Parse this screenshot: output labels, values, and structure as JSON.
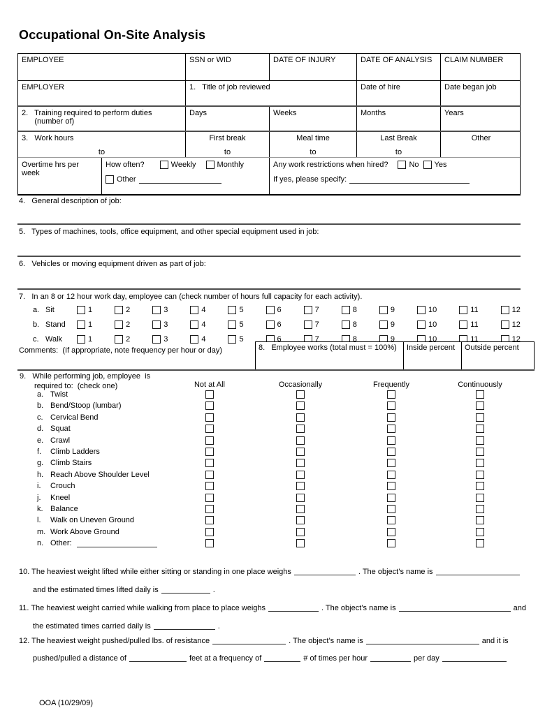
{
  "page": {
    "title": "Occupational On-Site Analysis",
    "footer": "OOA (10/29/09)"
  },
  "table": {
    "r1": [
      "EMPLOYEE",
      "SSN or WID",
      "DATE OF INJURY",
      "DATE OF ANALYSIS",
      "CLAIM NUMBER"
    ],
    "r2": [
      "EMPLOYER",
      "1.   Title of job reviewed",
      "Date of hire",
      "Date began job"
    ],
    "r3": {
      "c1": "2.   Training required to perform duties\n      (number of)",
      "c2": "Days",
      "c3": "Weeks",
      "c4": "Months",
      "c5": "Years"
    },
    "r4": {
      "c1": "3.   Work hours",
      "to": "to",
      "c2": "First break",
      "c3": "Meal time",
      "c4": "Last Break",
      "c5": "Other"
    },
    "r5": {
      "overtime": "Overtime hrs per week",
      "how_often": "How often?",
      "weekly": "Weekly",
      "monthly": "Monthly",
      "other": "Other",
      "restrictions": "Any work restrictions when hired?",
      "no": "No",
      "yes": "Yes",
      "specify": "If yes, please specify:"
    }
  },
  "s4": "4.   General description of job:",
  "s5": "5.   Types of machines, tools, office equipment, and other special equipment used in job:",
  "s6": "6.   Vehicles or moving equipment driven as part of job:",
  "s7": {
    "heading": "7.   In an 8 or 12 hour work day, employee can (check number of hours full capacity for each activity).",
    "hours": [
      "1",
      "2",
      "3",
      "4",
      "5",
      "6",
      "7",
      "8",
      "9",
      "10",
      "11",
      "12"
    ],
    "rows": [
      {
        "letter": "a.",
        "label": "Sit"
      },
      {
        "letter": "b.",
        "label": "Stand"
      },
      {
        "letter": "c.",
        "label": "Walk"
      }
    ],
    "comments": "Comments:  (If appropriate, note frequency per hour or day)"
  },
  "s8": {
    "label": "8.   Employee works (total must = 100%)",
    "inside": "Inside percent",
    "outside": "Outside percent"
  },
  "s9": {
    "heading_line1": "9.   While performing job, employee  is",
    "heading_line2": "required to:  (check one)",
    "columns": [
      "Not at All",
      "Occasionally",
      "Frequently",
      "Continuously"
    ],
    "items": [
      {
        "letter": "a.",
        "label": "Twist"
      },
      {
        "letter": "b.",
        "label": "Bend/Stoop (lumbar)"
      },
      {
        "letter": "c.",
        "label": "Cervical Bend"
      },
      {
        "letter": "d.",
        "label": "Squat"
      },
      {
        "letter": "e.",
        "label": "Crawl"
      },
      {
        "letter": "f.",
        "label": "Climb Ladders"
      },
      {
        "letter": "g.",
        "label": "Climb Stairs"
      },
      {
        "letter": "h.",
        "label": "Reach Above Shoulder Level"
      },
      {
        "letter": "i.",
        "label": "Crouch"
      },
      {
        "letter": "j.",
        "label": "Kneel"
      },
      {
        "letter": "k.",
        "label": "Balance"
      },
      {
        "letter": "l.",
        "label": "Walk on Uneven Ground"
      },
      {
        "letter": "m.",
        "label": "Work Above Ground"
      },
      {
        "letter": "n.",
        "label": "Other:",
        "blank": true
      }
    ]
  },
  "p10": {
    "l1a": "10. The heaviest weight lifted while either sitting or standing in one place weighs",
    "l1b": ". The object’s name is",
    "l2a": "and the estimated times lifted daily is",
    "l2b": "."
  },
  "p11": {
    "l1a": "11. The heaviest weight carried while walking from place to place weighs",
    "l1b": ". The object’s name is",
    "l1c": "and",
    "l2a": "the estimated times carried daily is",
    "l2b": "."
  },
  "p12": {
    "l1a": "12. The heaviest weight pushed/pulled lbs. of resistance",
    "l1b": ". The object’s name is",
    "l1c": "and it is",
    "l2a": "pushed/pulled a distance of",
    "l2b": "feet at a frequency of",
    "l2c": "# of times per hour",
    "l2d": "per day"
  }
}
